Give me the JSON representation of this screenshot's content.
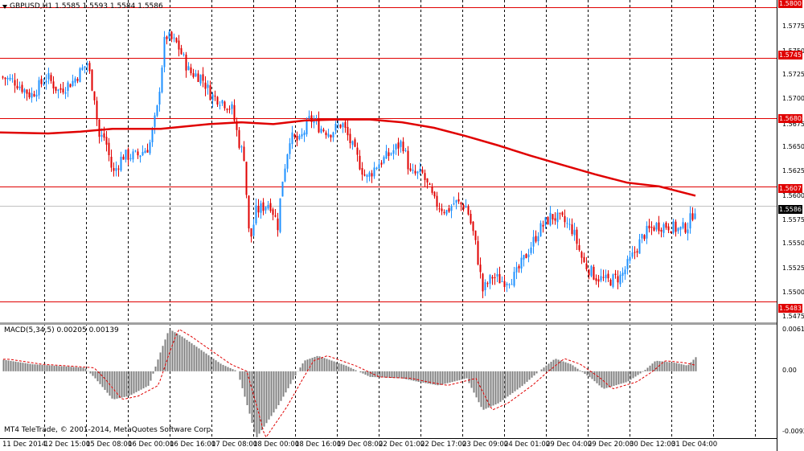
{
  "window": {
    "title": "GBPUSD,H1",
    "ohlc": "1.5585 1.5593 1.5584 1.5586"
  },
  "macd": {
    "title": "MACD(5,34,5) 0.00205 0.00139"
  },
  "copyright": "MT4 TeleTrade, © 2001-2014, MetaQuotes Software Corp.",
  "price_axis_ticks": [
    "1.5775",
    "1.5750",
    "1.5725",
    "1.5700",
    "1.5675",
    "1.5650",
    "1.5625",
    "1.5600",
    "1.5575",
    "1.5550",
    "1.5525",
    "1.5500",
    "1.5475"
  ],
  "price_levels": [
    "1.5800",
    "1.5745",
    "1.5680",
    "1.5607",
    "1.5483"
  ],
  "current_price": "1.5586",
  "macd_axis": [
    "0.00613",
    "0.00",
    "-0.00924"
  ],
  "time_labels": [
    "11 Dec 2014",
    "12 Dec 15:00",
    "15 Dec 08:00",
    "16 Dec 00:00",
    "16 Dec 16:00",
    "17 Dec 08:00",
    "18 Dec 00:00",
    "18 Dec 16:00",
    "19 Dec 08:00",
    "22 Dec 01:00",
    "22 Dec 17:00",
    "23 Dec 09:00",
    "24 Dec 01:00",
    "29 Dec 04:00",
    "29 Dec 20:00",
    "30 Dec 12:00",
    "31 Dec 04:00"
  ],
  "colors": {
    "bull_candle": "#1e90ff",
    "bear_candle": "#e00000",
    "moving_average": "#e00000",
    "level_line": "#e00000",
    "level_label_bg": "#e00000",
    "macd_histogram": "#808080",
    "macd_signal": "#e00000",
    "grid": "#000000"
  },
  "chart_data": {
    "type": "candlestick",
    "symbol": "GBPUSD",
    "timeframe": "H1",
    "price_range": [
      1.5465,
      1.5805
    ],
    "price_path": [
      [
        0,
        1.5725
      ],
      [
        18,
        1.572
      ],
      [
        38,
        1.5705
      ],
      [
        58,
        1.5725
      ],
      [
        72,
        1.571
      ],
      [
        90,
        1.572
      ],
      [
        108,
        1.574
      ],
      [
        118,
        1.57
      ],
      [
        122,
        1.566
      ],
      [
        130,
        1.566
      ],
      [
        140,
        1.562
      ],
      [
        152,
        1.564
      ],
      [
        170,
        1.564
      ],
      [
        185,
        1.565
      ],
      [
        195,
        1.569
      ],
      [
        205,
        1.577
      ],
      [
        220,
        1.576
      ],
      [
        235,
        1.573
      ],
      [
        250,
        1.5725
      ],
      [
        262,
        1.5705
      ],
      [
        275,
        1.57
      ],
      [
        288,
        1.569
      ],
      [
        298,
        1.565
      ],
      [
        303,
        1.564
      ],
      [
        310,
        1.5545
      ],
      [
        318,
        1.558
      ],
      [
        335,
        1.559
      ],
      [
        345,
        1.5565
      ],
      [
        350,
        1.561
      ],
      [
        360,
        1.566
      ],
      [
        372,
        1.5655
      ],
      [
        385,
        1.568
      ],
      [
        398,
        1.567
      ],
      [
        410,
        1.5665
      ],
      [
        425,
        1.5675
      ],
      [
        440,
        1.5645
      ],
      [
        455,
        1.5615
      ],
      [
        468,
        1.563
      ],
      [
        482,
        1.564
      ],
      [
        500,
        1.5655
      ],
      [
        510,
        1.562
      ],
      [
        525,
        1.562
      ],
      [
        540,
        1.559
      ],
      [
        555,
        1.558
      ],
      [
        565,
        1.559
      ],
      [
        580,
        1.5585
      ],
      [
        590,
        1.555
      ],
      [
        600,
        1.5495
      ],
      [
        612,
        1.551
      ],
      [
        625,
        1.5505
      ],
      [
        640,
        1.551
      ],
      [
        655,
        1.5535
      ],
      [
        670,
        1.556
      ],
      [
        685,
        1.5575
      ],
      [
        700,
        1.557
      ],
      [
        712,
        1.556
      ],
      [
        725,
        1.5525
      ],
      [
        740,
        1.551
      ],
      [
        755,
        1.5505
      ],
      [
        772,
        1.551
      ],
      [
        785,
        1.553
      ],
      [
        800,
        1.5555
      ],
      [
        815,
        1.5565
      ],
      [
        830,
        1.5565
      ],
      [
        845,
        1.556
      ],
      [
        855,
        1.5565
      ],
      [
        865,
        1.5586
      ]
    ],
    "moving_average_path": [
      [
        0,
        1.5665
      ],
      [
        60,
        1.5664
      ],
      [
        100,
        1.5666
      ],
      [
        140,
        1.5669
      ],
      [
        200,
        1.5669
      ],
      [
        260,
        1.5674
      ],
      [
        300,
        1.5676
      ],
      [
        340,
        1.5674
      ],
      [
        380,
        1.5678
      ],
      [
        420,
        1.5679
      ],
      [
        460,
        1.5679
      ],
      [
        500,
        1.5676
      ],
      [
        540,
        1.567
      ],
      [
        580,
        1.5661
      ],
      [
        620,
        1.5651
      ],
      [
        660,
        1.564
      ],
      [
        700,
        1.563
      ],
      [
        740,
        1.562
      ],
      [
        780,
        1.5611
      ],
      [
        820,
        1.5607
      ],
      [
        865,
        1.5597
      ]
    ],
    "macd_range": [
      -0.00924,
      0.00613
    ],
    "macd_histogram_path": [
      [
        0,
        0.0017
      ],
      [
        40,
        0.001
      ],
      [
        80,
        0.0007
      ],
      [
        105,
        0.0005
      ],
      [
        118,
        -0.001
      ],
      [
        140,
        -0.004
      ],
      [
        160,
        -0.0035
      ],
      [
        185,
        -0.002
      ],
      [
        200,
        0.003
      ],
      [
        210,
        0.006
      ],
      [
        225,
        0.005
      ],
      [
        250,
        0.003
      ],
      [
        275,
        0.001
      ],
      [
        295,
        0.0
      ],
      [
        310,
        -0.006
      ],
      [
        318,
        -0.0095
      ],
      [
        345,
        -0.005
      ],
      [
        365,
        -0.001
      ],
      [
        378,
        0.0015
      ],
      [
        395,
        0.0022
      ],
      [
        430,
        0.0008
      ],
      [
        460,
        -0.0008
      ],
      [
        500,
        -0.001
      ],
      [
        520,
        -0.0015
      ],
      [
        545,
        -0.002
      ],
      [
        580,
        -0.001
      ],
      [
        600,
        -0.0055
      ],
      [
        620,
        -0.0045
      ],
      [
        650,
        -0.002
      ],
      [
        670,
        0.0
      ],
      [
        690,
        0.0018
      ],
      [
        710,
        0.001
      ],
      [
        735,
        -0.001
      ],
      [
        750,
        -0.0025
      ],
      [
        780,
        -0.0015
      ],
      [
        800,
        0.0
      ],
      [
        815,
        0.0015
      ],
      [
        840,
        0.0012
      ],
      [
        855,
        0.0008
      ],
      [
        865,
        0.002
      ]
    ],
    "title": "GBPUSD,H1"
  }
}
